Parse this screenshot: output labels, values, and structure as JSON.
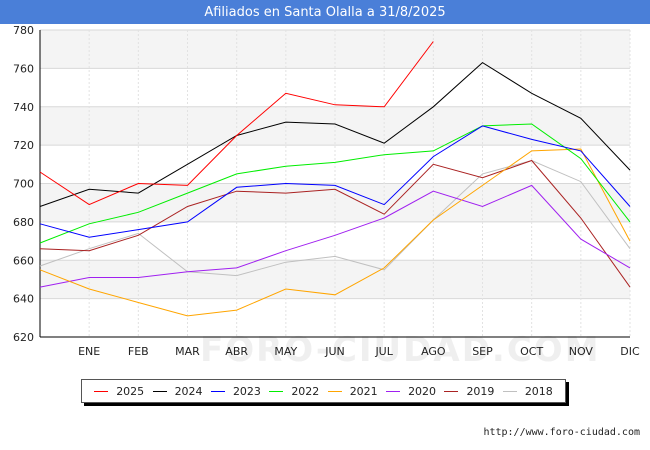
{
  "title": "Afiliados en Santa Olalla a 31/8/2025",
  "footer": "http://www.foro-ciudad.com",
  "watermark": "FORO-CIUDAD.COM",
  "chart_data": {
    "type": "line",
    "title": "Afiliados en Santa Olalla a 31/8/2025",
    "xlabel": "",
    "ylabel": "",
    "categories": [
      "",
      "ENE",
      "FEB",
      "MAR",
      "ABR",
      "MAY",
      "JUN",
      "JUL",
      "AGO",
      "SEP",
      "OCT",
      "NOV",
      "DIC"
    ],
    "ylim": [
      620,
      780
    ],
    "yticks": [
      620,
      640,
      660,
      680,
      700,
      720,
      740,
      760,
      780
    ],
    "grid": true,
    "legend_position": "bottom",
    "series": [
      {
        "name": "2025",
        "color": "#ff0000",
        "values": [
          706,
          689,
          700,
          699,
          725,
          747,
          741,
          740,
          774,
          null,
          null,
          null,
          null
        ]
      },
      {
        "name": "2024",
        "color": "#000000",
        "values": [
          688,
          697,
          695,
          710,
          725,
          732,
          731,
          721,
          740,
          763,
          747,
          734,
          707
        ]
      },
      {
        "name": "2023",
        "color": "#0000ff",
        "values": [
          679,
          672,
          676,
          680,
          698,
          700,
          699,
          689,
          714,
          730,
          723,
          717,
          688
        ]
      },
      {
        "name": "2022",
        "color": "#00ee00",
        "values": [
          669,
          679,
          685,
          695,
          705,
          709,
          711,
          715,
          717,
          730,
          731,
          713,
          680
        ]
      },
      {
        "name": "2021",
        "color": "#ffa500",
        "values": [
          655,
          645,
          638,
          631,
          634,
          645,
          642,
          656,
          681,
          699,
          717,
          718,
          670
        ]
      },
      {
        "name": "2020",
        "color": "#a020f0",
        "values": [
          646,
          651,
          651,
          654,
          656,
          665,
          673,
          682,
          696,
          688,
          699,
          671,
          656
        ]
      },
      {
        "name": "2019",
        "color": "#aa2222",
        "values": [
          666,
          665,
          673,
          688,
          696,
          695,
          697,
          684,
          710,
          703,
          712,
          682,
          646
        ]
      },
      {
        "name": "2018",
        "color": "#c0c0c0",
        "values": [
          657,
          666,
          674,
          654,
          652,
          659,
          662,
          655,
          681,
          705,
          712,
          701,
          666
        ]
      }
    ]
  }
}
